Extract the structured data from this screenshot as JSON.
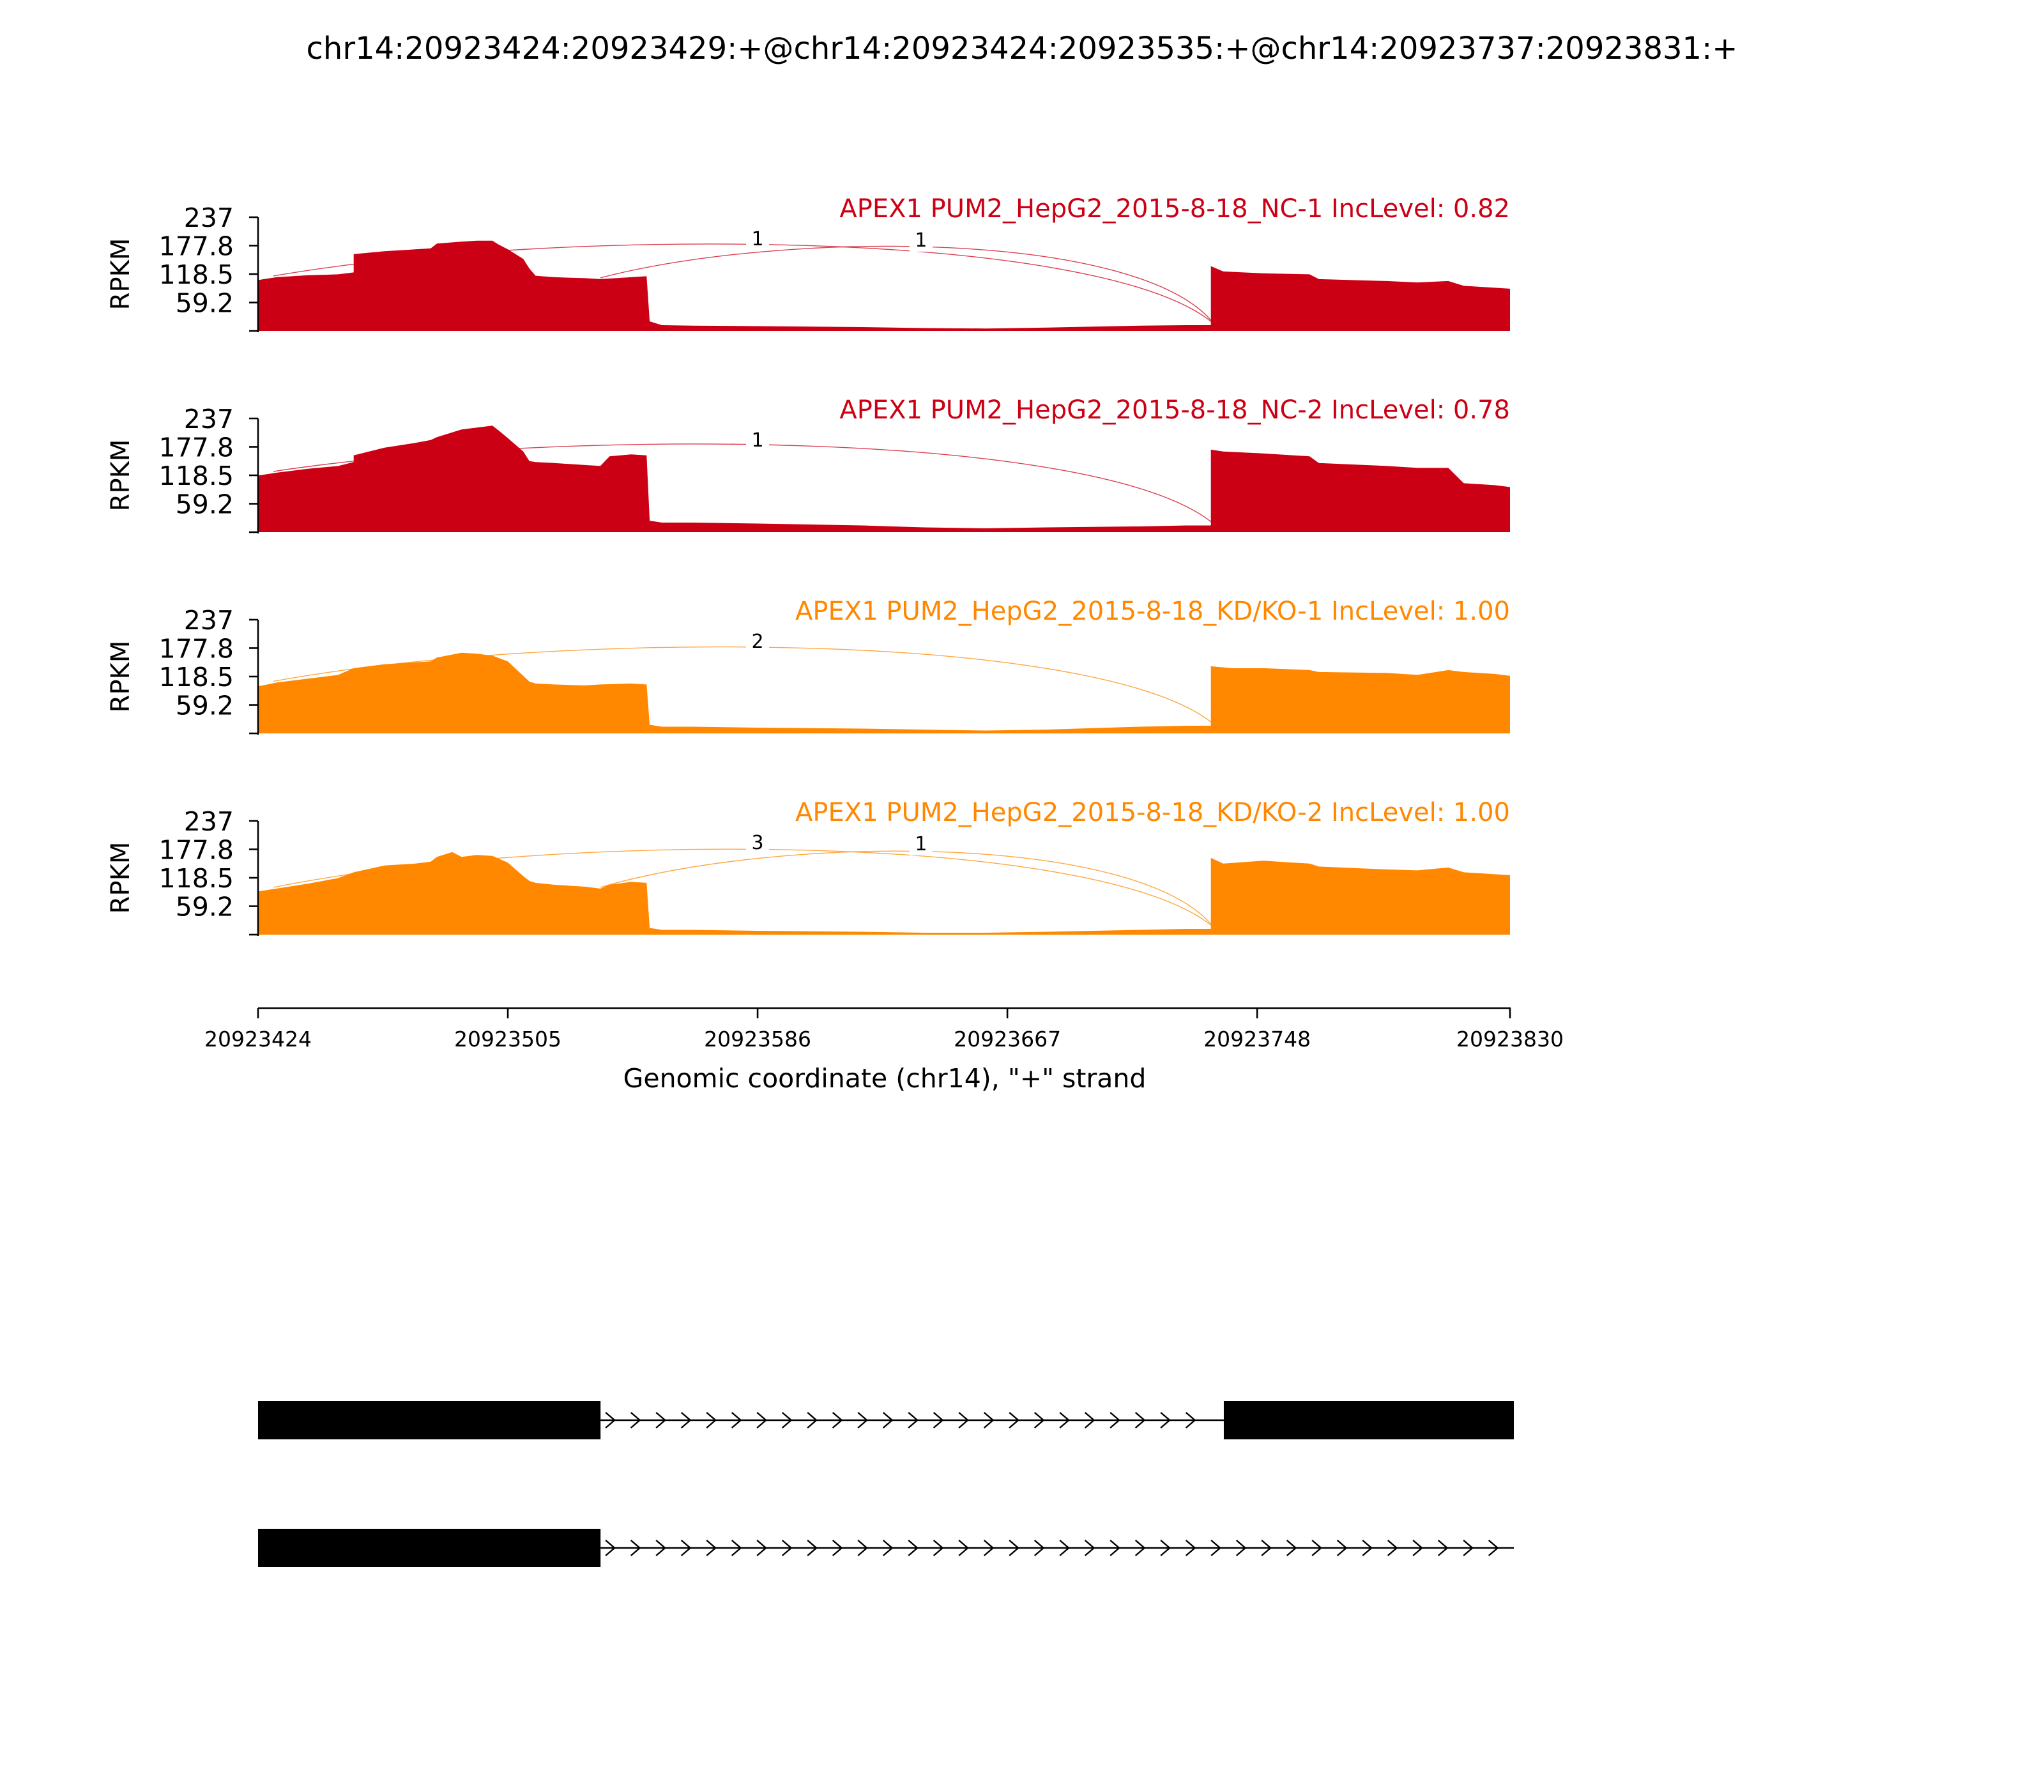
{
  "title": "chr14:20923424:20923429:+@chr14:20923424:20923535:+@chr14:20923737:20923831:+",
  "colors": {
    "nc": "#cc0015",
    "kd": "#ff8800",
    "axis": "#000000",
    "gene": "#000000",
    "background": "#ffffff"
  },
  "chart_data": {
    "type": "area",
    "xlabel": "Genomic coordinate (chr14), \"+\" strand",
    "ylabel": "RPKM",
    "xlim": [
      20923424,
      20923830
    ],
    "ylim": [
      0,
      237
    ],
    "x_ticks": [
      20923424,
      20923505,
      20923586,
      20923667,
      20923748,
      20923830
    ],
    "y_ticks": [
      59.2,
      118.5,
      177.8,
      237
    ],
    "y_tick_labels": [
      "59.2",
      "118.5",
      "177.8",
      "237"
    ],
    "x_tick_labels": [
      "20923424",
      "20923505",
      "20923586",
      "20923667",
      "20923748",
      "20923830"
    ],
    "tracks": [
      {
        "label": "APEX1 PUM2_HepG2_2015-8-18_NC-1 IncLevel: 0.82",
        "color_key": "nc",
        "coverage": [
          [
            20923424,
            106
          ],
          [
            20923430,
            112
          ],
          [
            20923440,
            116
          ],
          [
            20923450,
            118
          ],
          [
            20923455,
            122
          ],
          [
            20923455,
            160
          ],
          [
            20923465,
            166
          ],
          [
            20923475,
            170
          ],
          [
            20923480,
            172
          ],
          [
            20923482,
            182
          ],
          [
            20923490,
            186
          ],
          [
            20923495,
            188
          ],
          [
            20923500,
            188
          ],
          [
            20923502,
            180
          ],
          [
            20923505,
            170
          ],
          [
            20923510,
            150
          ],
          [
            20923512,
            130
          ],
          [
            20923514,
            115
          ],
          [
            20923520,
            112
          ],
          [
            20923530,
            110
          ],
          [
            20923535,
            108
          ],
          [
            20923540,
            110
          ],
          [
            20923545,
            112
          ],
          [
            20923550,
            114
          ],
          [
            20923551,
            20
          ],
          [
            20923555,
            12
          ],
          [
            20923565,
            11
          ],
          [
            20923586,
            10
          ],
          [
            20923620,
            8
          ],
          [
            20923640,
            6
          ],
          [
            20923660,
            5
          ],
          [
            20923680,
            7
          ],
          [
            20923710,
            11
          ],
          [
            20923725,
            12
          ],
          [
            20923733,
            12
          ],
          [
            20923733,
            135
          ],
          [
            20923737,
            124
          ],
          [
            20923750,
            120
          ],
          [
            20923765,
            118
          ],
          [
            20923768,
            108
          ],
          [
            20923790,
            104
          ],
          [
            20923800,
            101
          ],
          [
            20923810,
            104
          ],
          [
            20923815,
            94
          ],
          [
            20923825,
            90
          ],
          [
            20923830,
            88
          ]
        ],
        "junctions": [
          {
            "from": 20923429,
            "to": 20923734,
            "count": "1",
            "label_x": 20923586
          },
          {
            "from": 20923535,
            "to": 20923734,
            "count": "1",
            "label_x": 20923639
          }
        ]
      },
      {
        "label": "APEX1 PUM2_HepG2_2015-8-18_NC-2 IncLevel: 0.78",
        "color_key": "nc",
        "coverage": [
          [
            20923424,
            118
          ],
          [
            20923430,
            124
          ],
          [
            20923440,
            132
          ],
          [
            20923450,
            138
          ],
          [
            20923455,
            146
          ],
          [
            20923455,
            160
          ],
          [
            20923465,
            176
          ],
          [
            20923475,
            186
          ],
          [
            20923480,
            192
          ],
          [
            20923482,
            198
          ],
          [
            20923490,
            214
          ],
          [
            20923495,
            218
          ],
          [
            20923500,
            222
          ],
          [
            20923502,
            212
          ],
          [
            20923505,
            196
          ],
          [
            20923510,
            168
          ],
          [
            20923512,
            148
          ],
          [
            20923514,
            146
          ],
          [
            20923520,
            144
          ],
          [
            20923530,
            140
          ],
          [
            20923535,
            138
          ],
          [
            20923538,
            158
          ],
          [
            20923545,
            162
          ],
          [
            20923550,
            160
          ],
          [
            20923551,
            24
          ],
          [
            20923555,
            20
          ],
          [
            20923565,
            20
          ],
          [
            20923586,
            18
          ],
          [
            20923620,
            14
          ],
          [
            20923640,
            10
          ],
          [
            20923660,
            8
          ],
          [
            20923680,
            10
          ],
          [
            20923710,
            12
          ],
          [
            20923725,
            14
          ],
          [
            20923733,
            14
          ],
          [
            20923733,
            172
          ],
          [
            20923737,
            168
          ],
          [
            20923750,
            164
          ],
          [
            20923765,
            158
          ],
          [
            20923768,
            144
          ],
          [
            20923790,
            138
          ],
          [
            20923800,
            134
          ],
          [
            20923810,
            134
          ],
          [
            20923815,
            102
          ],
          [
            20923825,
            98
          ],
          [
            20923830,
            94
          ]
        ],
        "junctions": [
          {
            "from": 20923429,
            "to": 20923734,
            "count": "1",
            "label_x": 20923586
          }
        ]
      },
      {
        "label": "APEX1 PUM2_HepG2_2015-8-18_KD/KO-1 IncLevel: 1.00",
        "color_key": "kd",
        "coverage": [
          [
            20923424,
            98
          ],
          [
            20923430,
            106
          ],
          [
            20923440,
            114
          ],
          [
            20923450,
            122
          ],
          [
            20923455,
            136
          ],
          [
            20923465,
            144
          ],
          [
            20923475,
            148
          ],
          [
            20923480,
            150
          ],
          [
            20923482,
            158
          ],
          [
            20923490,
            168
          ],
          [
            20923495,
            166
          ],
          [
            20923500,
            162
          ],
          [
            20923505,
            150
          ],
          [
            20923510,
            120
          ],
          [
            20923512,
            108
          ],
          [
            20923514,
            104
          ],
          [
            20923520,
            102
          ],
          [
            20923530,
            100
          ],
          [
            20923535,
            102
          ],
          [
            20923545,
            104
          ],
          [
            20923550,
            102
          ],
          [
            20923551,
            18
          ],
          [
            20923555,
            14
          ],
          [
            20923565,
            14
          ],
          [
            20923586,
            12
          ],
          [
            20923620,
            10
          ],
          [
            20923640,
            8
          ],
          [
            20923660,
            6
          ],
          [
            20923680,
            8
          ],
          [
            20923710,
            14
          ],
          [
            20923725,
            16
          ],
          [
            20923733,
            16
          ],
          [
            20923733,
            140
          ],
          [
            20923740,
            136
          ],
          [
            20923750,
            136
          ],
          [
            20923765,
            132
          ],
          [
            20923768,
            128
          ],
          [
            20923790,
            126
          ],
          [
            20923800,
            122
          ],
          [
            20923810,
            132
          ],
          [
            20923815,
            128
          ],
          [
            20923825,
            124
          ],
          [
            20923830,
            120
          ]
        ],
        "junctions": [
          {
            "from": 20923429,
            "to": 20923734,
            "count": "2",
            "label_x": 20923586
          }
        ]
      },
      {
        "label": "APEX1 PUM2_HepG2_2015-8-18_KD/KO-2 IncLevel: 1.00",
        "color_key": "kd",
        "coverage": [
          [
            20923424,
            90
          ],
          [
            20923430,
            96
          ],
          [
            20923440,
            106
          ],
          [
            20923450,
            118
          ],
          [
            20923455,
            130
          ],
          [
            20923465,
            144
          ],
          [
            20923475,
            148
          ],
          [
            20923480,
            152
          ],
          [
            20923482,
            162
          ],
          [
            20923487,
            172
          ],
          [
            20923490,
            162
          ],
          [
            20923495,
            166
          ],
          [
            20923500,
            164
          ],
          [
            20923505,
            150
          ],
          [
            20923510,
            122
          ],
          [
            20923512,
            112
          ],
          [
            20923514,
            108
          ],
          [
            20923520,
            104
          ],
          [
            20923530,
            100
          ],
          [
            20923535,
            96
          ],
          [
            20923538,
            104
          ],
          [
            20923545,
            110
          ],
          [
            20923550,
            108
          ],
          [
            20923551,
            14
          ],
          [
            20923555,
            10
          ],
          [
            20923565,
            10
          ],
          [
            20923586,
            8
          ],
          [
            20923620,
            6
          ],
          [
            20923640,
            4
          ],
          [
            20923660,
            4
          ],
          [
            20923680,
            6
          ],
          [
            20923710,
            10
          ],
          [
            20923725,
            12
          ],
          [
            20923733,
            12
          ],
          [
            20923733,
            160
          ],
          [
            20923737,
            148
          ],
          [
            20923750,
            154
          ],
          [
            20923765,
            148
          ],
          [
            20923768,
            142
          ],
          [
            20923790,
            136
          ],
          [
            20923800,
            134
          ],
          [
            20923810,
            140
          ],
          [
            20923815,
            130
          ],
          [
            20923825,
            126
          ],
          [
            20923830,
            124
          ]
        ],
        "junctions": [
          {
            "from": 20923429,
            "to": 20923734,
            "count": "3",
            "label_x": 20923586
          },
          {
            "from": 20923535,
            "to": 20923734,
            "count": "1",
            "label_x": 20923639
          }
        ]
      }
    ],
    "isoforms": [
      {
        "exons": [
          [
            20923424,
            20923535
          ],
          [
            20923737,
            20923831
          ]
        ]
      },
      {
        "exons": [
          [
            20923424,
            20923535
          ]
        ]
      }
    ]
  }
}
